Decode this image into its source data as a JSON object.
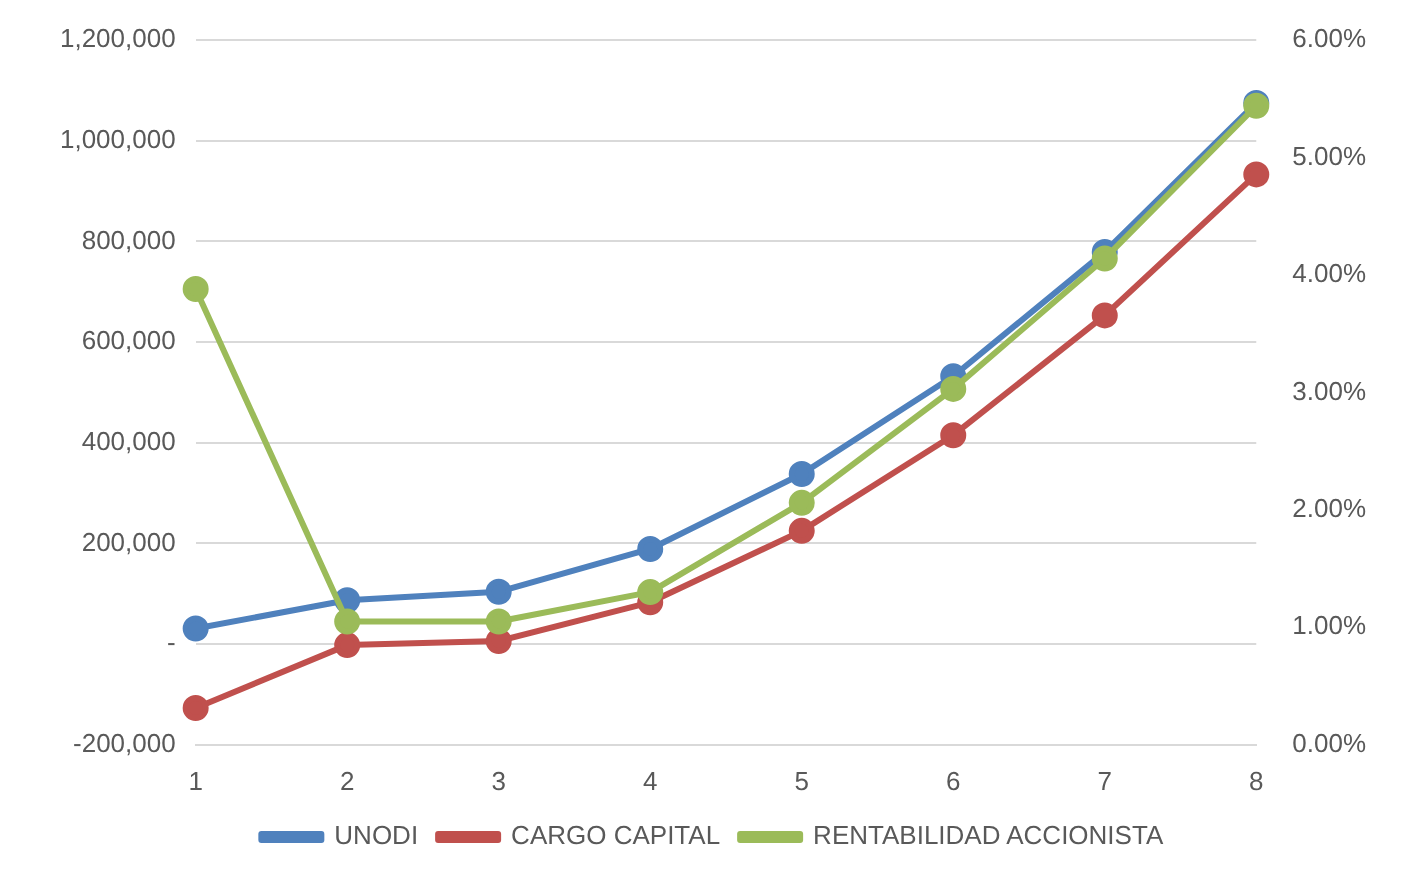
{
  "chart_data": {
    "type": "line",
    "categories": [
      "1",
      "2",
      "3",
      "4",
      "5",
      "6",
      "7",
      "8"
    ],
    "series": [
      {
        "name": "UNODI",
        "color": "#4f81bd",
        "values": [
          31000,
          87000,
          104000,
          189000,
          338000,
          532000,
          779000,
          1075000
        ]
      },
      {
        "name": "CARGO CAPITAL",
        "color": "#c0504d",
        "values": [
          -127000,
          -2000,
          6000,
          83000,
          225000,
          415000,
          653000,
          933000
        ]
      },
      {
        "name": "RENTABILIDAD ACCIONISTA",
        "color": "#9bbb59",
        "axis": "y2",
        "values": [
          3.88,
          1.05,
          1.05,
          1.3,
          2.06,
          3.03,
          4.14,
          5.44
        ]
      }
    ],
    "ylim": [
      -200000,
      1200000
    ],
    "yticks": [
      {
        "value": -200000,
        "label": "-200,000"
      },
      {
        "value": 0,
        "label": "-"
      },
      {
        "value": 200000,
        "label": "200,000"
      },
      {
        "value": 400000,
        "label": "400,000"
      },
      {
        "value": 600000,
        "label": "600,000"
      },
      {
        "value": 800000,
        "label": "800,000"
      },
      {
        "value": 1000000,
        "label": "1,000,000"
      },
      {
        "value": 1200000,
        "label": "1,200,000"
      }
    ],
    "y2lim": [
      0,
      6
    ],
    "y2ticks": [
      {
        "value": 0,
        "label": "0.00%"
      },
      {
        "value": 1,
        "label": "1.00%"
      },
      {
        "value": 2,
        "label": "2.00%"
      },
      {
        "value": 3,
        "label": "3.00%"
      },
      {
        "value": 4,
        "label": "4.00%"
      },
      {
        "value": 5,
        "label": "5.00%"
      },
      {
        "value": 6,
        "label": "6.00%"
      }
    ],
    "grid": "y",
    "legend": "bottom",
    "marker": "circle",
    "line_style": "solid"
  }
}
